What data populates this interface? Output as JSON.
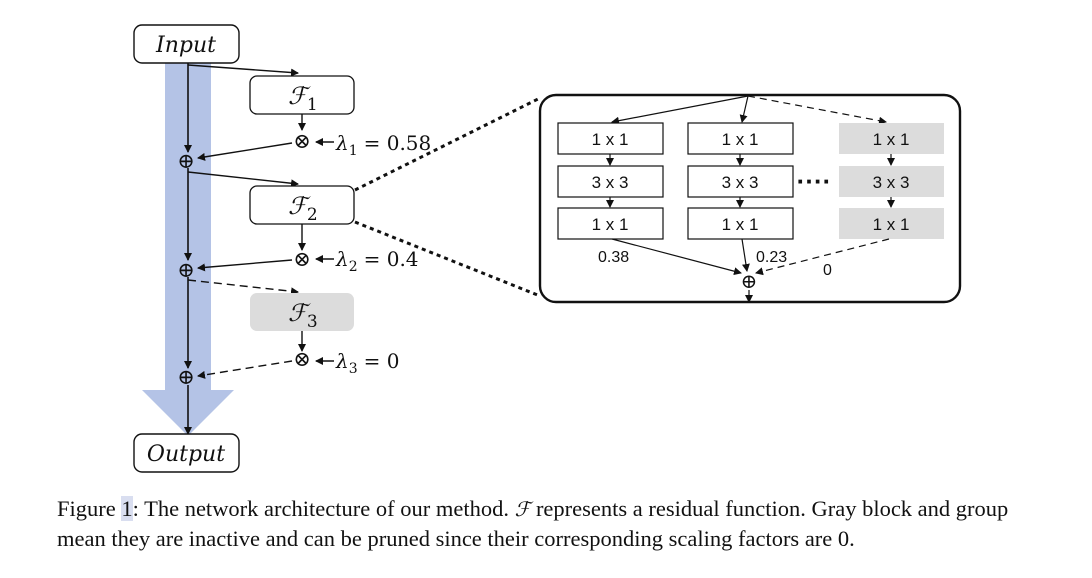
{
  "diagram": {
    "input_label": "Input",
    "output_label": "Output",
    "f_symbol": "ℱ",
    "blocks": [
      {
        "sub": "1",
        "active": true
      },
      {
        "sub": "2",
        "active": true
      },
      {
        "sub": "3",
        "active": false
      }
    ],
    "multiply_symbol": "⊗",
    "add_symbol": "⊕",
    "lambdas": [
      {
        "symbol": "λ",
        "sub": "1",
        "value": "= 0.58"
      },
      {
        "symbol": "λ",
        "sub": "2",
        "value": "= 0.4"
      },
      {
        "symbol": "λ",
        "sub": "3",
        "value": "= 0"
      }
    ],
    "inset": {
      "groups": [
        {
          "layers": [
            "1 x 1",
            "3 x 3",
            "1 x 1"
          ],
          "scale": "0.38",
          "active": true
        },
        {
          "layers": [
            "1 x 1",
            "3 x 3",
            "1 x 1"
          ],
          "scale": "0.23",
          "active": true
        },
        {
          "layers": [
            "1 x 1",
            "3 x 3",
            "1 x 1"
          ],
          "scale": "0",
          "active": false
        }
      ],
      "ellipsis": "····"
    },
    "colors": {
      "main_arrow": "#b4c3e6",
      "inactive_fill": "#dcdcdc",
      "stroke": "#111111"
    }
  },
  "caption": {
    "prefix": "Figure ",
    "ref": "1",
    "part1": ": The network architecture of our method. ",
    "symbol": "ℱ",
    "part2": " represents a residual function. Gray block and group mean they are inactive and can be pruned since their corresponding scaling factors are 0."
  }
}
